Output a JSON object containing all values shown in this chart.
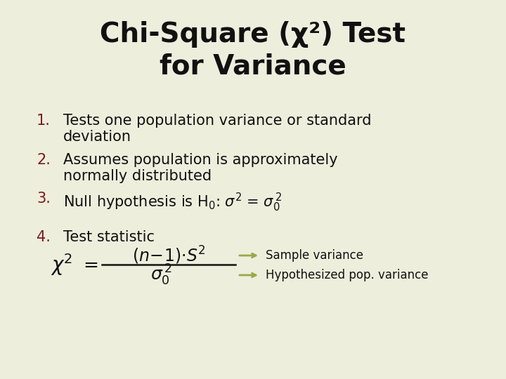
{
  "bg_color": "#eeeedd",
  "title_line1": "Chi-Square (χ²) Test",
  "title_line2": "for Variance",
  "title_color": "#111111",
  "title_fontsize": 28,
  "number_color": "#7a1a1a",
  "body_color": "#111111",
  "body_fontsize": 15,
  "item1_line1": "Tests one population variance or standard",
  "item1_line2": "deviation",
  "item2_line1": "Assumes population is approximately",
  "item2_line2": "normally distributed",
  "item4_label": "Test statistic",
  "arrow_color": "#99aa44",
  "annotation1": "Sample variance",
  "annotation2": "Hypothesized pop. variance",
  "annotation_fontsize": 12
}
